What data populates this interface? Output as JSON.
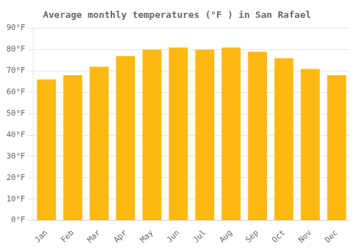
{
  "chart_data": {
    "type": "bar",
    "title": "Average monthly temperatures (°F ) in San Rafael",
    "categories": [
      "Jan",
      "Feb",
      "Mar",
      "Apr",
      "May",
      "Jun",
      "Jul",
      "Aug",
      "Sep",
      "Oct",
      "Nov",
      "Dec"
    ],
    "values": [
      66,
      68,
      72,
      77,
      80,
      81,
      80,
      81,
      79,
      76,
      71,
      68
    ],
    "color": "#FDB913",
    "ylim": [
      0,
      90
    ],
    "yticks": [
      {
        "value": 0,
        "label": "0°F"
      },
      {
        "value": 10,
        "label": "10°F"
      },
      {
        "value": 20,
        "label": "20°F"
      },
      {
        "value": 30,
        "label": "30°F"
      },
      {
        "value": 40,
        "label": "40°F"
      },
      {
        "value": 50,
        "label": "50°F"
      },
      {
        "value": 60,
        "label": "60°F"
      },
      {
        "value": 70,
        "label": "70°F"
      },
      {
        "value": 80,
        "label": "80°F"
      },
      {
        "value": 90,
        "label": "90°F"
      }
    ],
    "grid": true
  }
}
